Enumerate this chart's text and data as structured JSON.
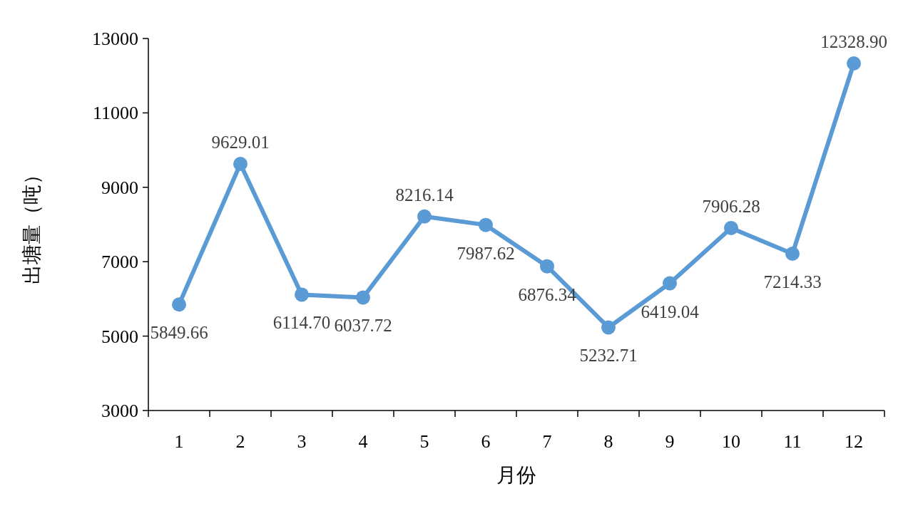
{
  "chart_data": {
    "type": "line",
    "xlabel": "月份",
    "ylabel": "出塘量（吨）",
    "categories": [
      "1",
      "2",
      "3",
      "4",
      "5",
      "6",
      "7",
      "8",
      "9",
      "10",
      "11",
      "12"
    ],
    "series": [
      {
        "color": "#5b9bd5",
        "values": [
          5849.66,
          9629.01,
          6114.7,
          6037.72,
          8216.14,
          7987.62,
          6876.34,
          5232.71,
          6419.04,
          7906.28,
          7214.33,
          12328.9
        ],
        "value_labels": [
          "5849.66",
          "9629.01",
          "6114.70",
          "6037.72",
          "8216.14",
          "7987.62",
          "6876.34",
          "5232.71",
          "6419.04",
          "7906.28",
          "7214.33",
          "12328.90"
        ]
      }
    ],
    "ylim": [
      3000,
      13000
    ],
    "yticks": [
      3000,
      5000,
      7000,
      9000,
      11000,
      13000
    ],
    "marker": "circle",
    "grid": false
  }
}
